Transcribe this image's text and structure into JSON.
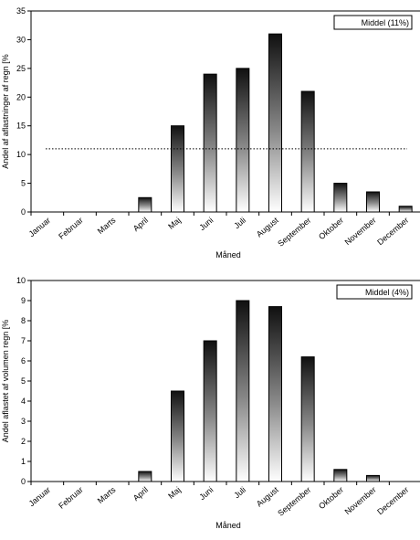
{
  "chart_data": [
    {
      "type": "bar",
      "categories": [
        "Januar",
        "Februar",
        "Marts",
        "April",
        "Maj",
        "Juni",
        "Juli",
        "August",
        "September",
        "Oktober",
        "November",
        "December"
      ],
      "values": [
        0,
        0,
        0,
        2.5,
        15,
        24,
        25,
        31,
        21,
        5,
        3.5,
        1
      ],
      "mean": 11,
      "legend": "Middel (11%)",
      "xlabel": "Måned",
      "ylabel": "Andel af aflastninger af regn [%",
      "ylim": [
        0,
        35
      ],
      "yticks": [
        0,
        5,
        10,
        15,
        20,
        25,
        30,
        35
      ],
      "legend_position": "top-right",
      "grid": false
    },
    {
      "type": "bar",
      "categories": [
        "Januar",
        "Februar",
        "Marts",
        "April",
        "Maj",
        "Juni",
        "Juli",
        "August",
        "September",
        "Oktober",
        "November",
        "December"
      ],
      "values": [
        0,
        0,
        0,
        0.5,
        4.5,
        7,
        9,
        8.7,
        6.2,
        0.6,
        0.3,
        0
      ],
      "mean": 4,
      "legend": "Middel (4%)",
      "xlabel": "Måned",
      "ylabel": "Andel aflastet af volumen regn [%",
      "ylim": [
        0,
        10
      ],
      "yticks": [
        0,
        1,
        2,
        3,
        4,
        5,
        6,
        7,
        8,
        9,
        10
      ],
      "legend_position": "top-right",
      "grid": false
    }
  ]
}
